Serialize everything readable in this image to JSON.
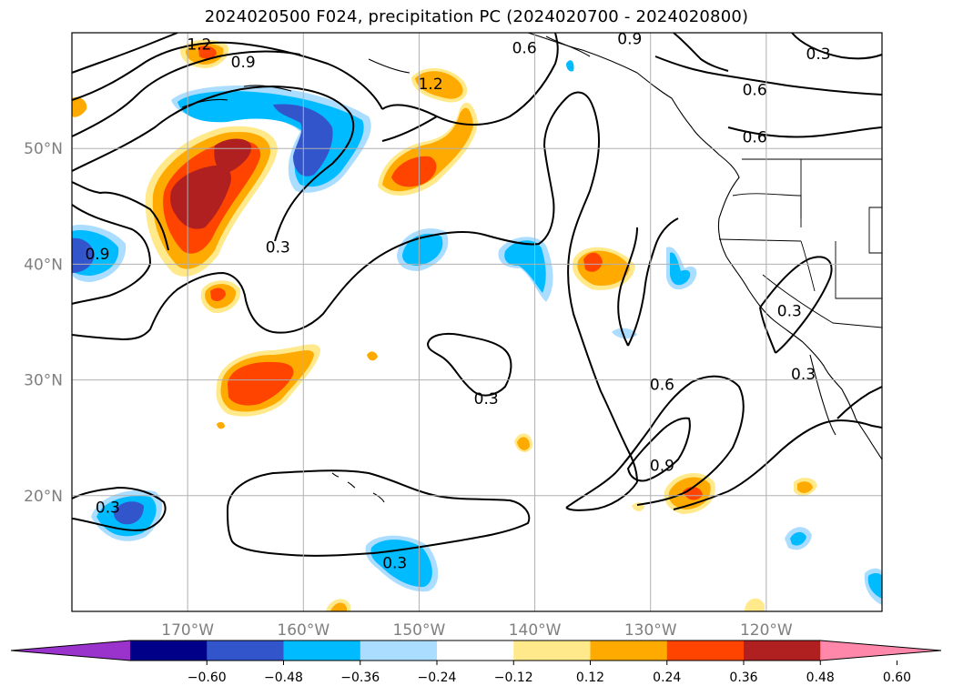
{
  "title": "2024020500 F024, precipitation PC (2024020700 - 2024020800)",
  "map": {
    "lon_range": [
      -180,
      -110
    ],
    "lat_range": [
      10,
      60
    ],
    "lon_ticks": [
      {
        "lon": -170,
        "label": "170°W"
      },
      {
        "lon": -160,
        "label": "160°W"
      },
      {
        "lon": -150,
        "label": "150°W"
      },
      {
        "lon": -140,
        "label": "140°W"
      },
      {
        "lon": -130,
        "label": "130°W"
      },
      {
        "lon": -120,
        "label": "120°W"
      }
    ],
    "lat_ticks": [
      {
        "lat": 20,
        "label": "20°N"
      },
      {
        "lat": 30,
        "label": "30°N"
      },
      {
        "lat": 40,
        "label": "40°N"
      },
      {
        "lat": 50,
        "label": "50°N"
      }
    ],
    "gridlines": true,
    "contour_labels": [
      {
        "text": "1.2",
        "lon": -169.0,
        "lat": 59.0
      },
      {
        "text": "0.9",
        "lon": -165.2,
        "lat": 57.5
      },
      {
        "text": "1.2",
        "lon": -149.0,
        "lat": 55.6
      },
      {
        "text": "0.6",
        "lon": -140.9,
        "lat": 58.7
      },
      {
        "text": "0.9",
        "lon": -131.8,
        "lat": 59.5
      },
      {
        "text": "0.3",
        "lon": -115.5,
        "lat": 58.2
      },
      {
        "text": "0.6",
        "lon": -121.0,
        "lat": 55.1
      },
      {
        "text": "0.6",
        "lon": -121.0,
        "lat": 51.0
      },
      {
        "text": "0.3",
        "lon": -162.2,
        "lat": 41.5
      },
      {
        "text": "0.9",
        "lon": -177.8,
        "lat": 40.9
      },
      {
        "text": "0.3",
        "lon": -118.0,
        "lat": 36.0
      },
      {
        "text": "0.3",
        "lon": -116.8,
        "lat": 30.5
      },
      {
        "text": "0.3",
        "lon": -144.2,
        "lat": 28.4
      },
      {
        "text": "0.6",
        "lon": -129.0,
        "lat": 29.6
      },
      {
        "text": "0.9",
        "lon": -129.0,
        "lat": 22.6
      },
      {
        "text": "0.3",
        "lon": -176.9,
        "lat": 19.0
      },
      {
        "text": "0.3",
        "lon": -152.1,
        "lat": 14.2
      }
    ]
  },
  "colorbar": {
    "colors": [
      "#9933cc",
      "#000088",
      "#3355cc",
      "#00bbff",
      "#aaddff",
      "#ffffff",
      "#ffe98a",
      "#ffaa00",
      "#ff4400",
      "#b02020",
      "#ff88aa"
    ],
    "tick_labels": [
      "−0.60",
      "−0.48",
      "−0.36",
      "−0.24",
      "−0.12",
      "0.12",
      "0.24",
      "0.36",
      "0.48",
      "0.60"
    ],
    "extend": "both"
  }
}
